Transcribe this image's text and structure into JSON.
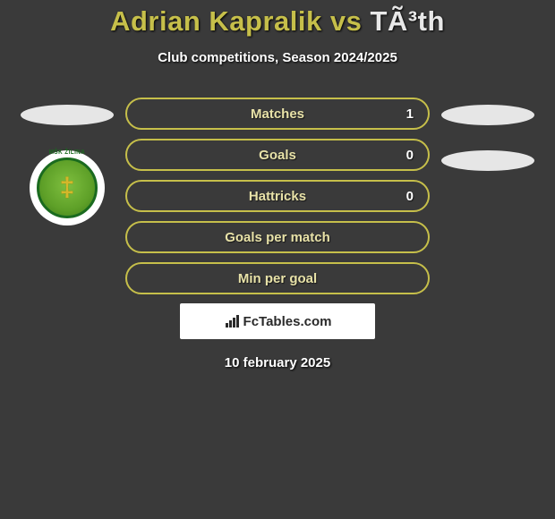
{
  "title": {
    "player1": "Adrian Kapralik",
    "vs": "vs",
    "player2": "TÃ³th",
    "player1_color": "#c6bf4a",
    "player2_color": "#e8e8e8"
  },
  "subtitle": "Club competitions, Season 2024/2025",
  "stats": [
    {
      "label": "Matches",
      "value": "1",
      "show_value": true
    },
    {
      "label": "Goals",
      "value": "0",
      "show_value": true
    },
    {
      "label": "Hattricks",
      "value": "0",
      "show_value": true
    },
    {
      "label": "Goals per match",
      "value": "",
      "show_value": false
    },
    {
      "label": "Min per goal",
      "value": "",
      "show_value": false
    }
  ],
  "style": {
    "row_border_color": "#c6bf4a",
    "row_bg_color": "rgba(60,60,60,0.2)",
    "label_color": "#e8e2a8"
  },
  "crest": {
    "text": "MŠK ŽILINA"
  },
  "site_label": "FcTables.com",
  "date": "10 february 2025"
}
